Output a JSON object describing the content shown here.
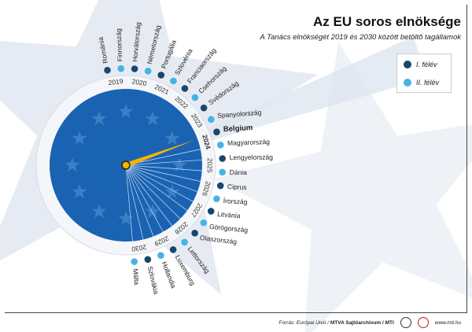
{
  "title": "Az EU soros elnöksége",
  "subtitle": "A Tanács elnökségét 2019 és 2030 között betöltő tagállamok",
  "legend": {
    "first_half": "I. félév",
    "second_half": "II. félév"
  },
  "colors": {
    "first_half": "#17476e",
    "second_half": "#45b4e3",
    "eu_blue": "#1a63b3",
    "hand": "#f4b400",
    "highlight_text": "#111"
  },
  "current": {
    "year": "2024",
    "country": "Belgium"
  },
  "presidencies": [
    {
      "country": "Románia",
      "year": "2019",
      "half": 1
    },
    {
      "country": "Finnország",
      "year": "2019",
      "half": 2
    },
    {
      "country": "Horvátország",
      "year": "2020",
      "half": 1
    },
    {
      "country": "Németország",
      "year": "2020",
      "half": 2
    },
    {
      "country": "Portugália",
      "year": "2021",
      "half": 1
    },
    {
      "country": "Szlovénia",
      "year": "2021",
      "half": 2
    },
    {
      "country": "Franciaország",
      "year": "2022",
      "half": 1
    },
    {
      "country": "Csehország",
      "year": "2022",
      "half": 2
    },
    {
      "country": "Svédország",
      "year": "2023",
      "half": 1
    },
    {
      "country": "Spanyolország",
      "year": "2023",
      "half": 2
    },
    {
      "country": "Belgium",
      "year": "2024",
      "half": 1
    },
    {
      "country": "Magyarország",
      "year": "2024",
      "half": 2
    },
    {
      "country": "Lengyelország",
      "year": "2025",
      "half": 1
    },
    {
      "country": "Dánia",
      "year": "2025",
      "half": 2
    },
    {
      "country": "Ciprus",
      "year": "2026",
      "half": 1
    },
    {
      "country": "Írország",
      "year": "2026",
      "half": 2
    },
    {
      "country": "Litvánia",
      "year": "2027",
      "half": 1
    },
    {
      "country": "Görögország",
      "year": "2027",
      "half": 2
    },
    {
      "country": "Olaszország",
      "year": "2028",
      "half": 1
    },
    {
      "country": "Lettország",
      "year": "2028",
      "half": 2
    },
    {
      "country": "Luxemburg",
      "year": "2029",
      "half": 1
    },
    {
      "country": "Hollandia",
      "year": "2029",
      "half": 2
    },
    {
      "country": "Szlovákia",
      "year": "2030",
      "half": 1
    },
    {
      "country": "Málta",
      "year": "2030",
      "half": 2
    }
  ],
  "footer": {
    "source_prefix": "Forrás: Európai Unió / ",
    "source_bold": "MTVA Sajtóarchívum / MTI",
    "website": "www.mti.hu"
  }
}
